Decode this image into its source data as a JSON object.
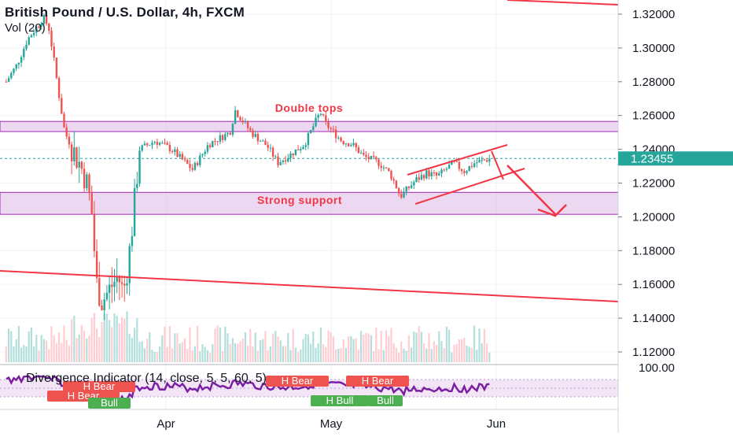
{
  "header": {
    "symbol_title": "British Pound / U.S. Dollar, 4h, FXCM",
    "volume_label": "Vol (20)"
  },
  "price_axis": {
    "ticks": [
      "1.32000",
      "1.30000",
      "1.28000",
      "1.26000",
      "1.24000",
      "1.22000",
      "1.20000",
      "1.18000",
      "1.16000",
      "1.14000",
      "1.12000"
    ],
    "current_price": "1.23455",
    "current_price_color": "#26a69a"
  },
  "indicator": {
    "title": "Divergence Indicator (14, close, 5, 5, 60, 5)",
    "axis_tick": "100.00",
    "labels": {
      "h_bear_1": "H Bear",
      "h_bear_2": "H Bear",
      "h_bear_3": "H Bear",
      "h_bear_4": "H Bear",
      "bull_1": "Bull",
      "h_bull_1": "H Bull",
      "bull_2": "Bull"
    },
    "line_color": "#7b1fa2",
    "bear_color": "#ef5350",
    "bull_color": "#4caf50"
  },
  "time_axis": {
    "labels": [
      "Apr",
      "May",
      "Jun"
    ]
  },
  "annotations": {
    "double_tops": "Double tops",
    "strong_support": "Strong support",
    "color": "#f23645",
    "zone_fill": "#e1bee7",
    "zone_stroke": "#9c27b0"
  },
  "chart_data": {
    "type": "candlestick",
    "title": "British Pound / U.S. Dollar, 4h, FXCM",
    "ylim": [
      1.105,
      1.328
    ],
    "x_ticks": [
      "Apr",
      "May",
      "Jun"
    ],
    "current_price": 1.23455,
    "resistance_zone": [
      1.2505,
      1.2565
    ],
    "support_zone": [
      1.2015,
      1.2145
    ],
    "price_path": [
      {
        "d": "Mar 02",
        "p": 1.28
      },
      {
        "d": "Mar 04",
        "p": 1.29
      },
      {
        "d": "Mar 06",
        "p": 1.305
      },
      {
        "d": "Mar 09",
        "p": 1.318
      },
      {
        "d": "Mar 10",
        "p": 1.312
      },
      {
        "d": "Mar 11",
        "p": 1.292
      },
      {
        "d": "Mar 12",
        "p": 1.27
      },
      {
        "d": "Mar 13",
        "p": 1.25
      },
      {
        "d": "Mar 16",
        "p": 1.23
      },
      {
        "d": "Mar 17",
        "p": 1.222
      },
      {
        "d": "Mar 18",
        "p": 1.205
      },
      {
        "d": "Mar 19",
        "p": 1.16
      },
      {
        "d": "Mar 20",
        "p": 1.15
      },
      {
        "d": "Mar 23",
        "p": 1.165
      },
      {
        "d": "Mar 24",
        "p": 1.155
      },
      {
        "d": "Mar 25",
        "p": 1.175
      },
      {
        "d": "Mar 26",
        "p": 1.205
      },
      {
        "d": "Mar 27",
        "p": 1.24
      },
      {
        "d": "Mar 30",
        "p": 1.245
      },
      {
        "d": "Apr 02",
        "p": 1.24
      },
      {
        "d": "Apr 06",
        "p": 1.228
      },
      {
        "d": "Apr 09",
        "p": 1.243
      },
      {
        "d": "Apr 13",
        "p": 1.25
      },
      {
        "d": "Apr 14",
        "p": 1.263
      },
      {
        "d": "Apr 17",
        "p": 1.25
      },
      {
        "d": "Apr 20",
        "p": 1.242
      },
      {
        "d": "Apr 22",
        "p": 1.232
      },
      {
        "d": "Apr 24",
        "p": 1.236
      },
      {
        "d": "Apr 27",
        "p": 1.243
      },
      {
        "d": "Apr 30",
        "p": 1.262
      },
      {
        "d": "May 01",
        "p": 1.255
      },
      {
        "d": "May 04",
        "p": 1.245
      },
      {
        "d": "May 06",
        "p": 1.243
      },
      {
        "d": "May 08",
        "p": 1.236
      },
      {
        "d": "May 11",
        "p": 1.232
      },
      {
        "d": "May 13",
        "p": 1.226
      },
      {
        "d": "May 14",
        "p": 1.22
      },
      {
        "d": "May 15",
        "p": 1.212
      },
      {
        "d": "May 18",
        "p": 1.222
      },
      {
        "d": "May 20",
        "p": 1.226
      },
      {
        "d": "May 22",
        "p": 1.224
      },
      {
        "d": "May 25",
        "p": 1.232
      },
      {
        "d": "May 27",
        "p": 1.227
      },
      {
        "d": "May 29",
        "p": 1.232
      },
      {
        "d": "Jun 01",
        "p": 1.2345
      }
    ],
    "indicator_ylim": [
      0,
      100
    ]
  }
}
